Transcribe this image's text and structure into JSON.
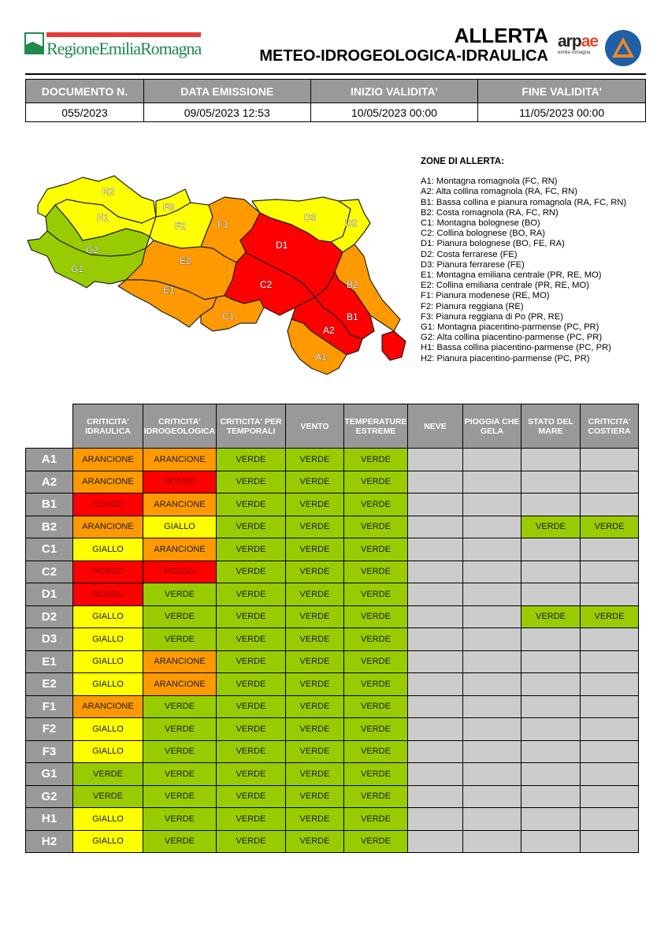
{
  "header": {
    "org_logo_text": "RegioneEmiliaRomagna",
    "title_line1": "ALLERTA",
    "title_line2": "METEO-IDROGEOLOGICA-IDRAULICA",
    "arpae_logo": {
      "word_a": "arp",
      "word_b": "ae",
      "subtitle": "emilia-romagna"
    },
    "civil_protection_logo": "protezione-civile-emblem"
  },
  "document_info": {
    "headers": [
      "DOCUMENTO N.",
      "DATA EMISSIONE",
      "INIZIO VALIDITA'",
      "FINE VALIDITA'"
    ],
    "values": [
      "055/2023",
      "09/05/2023 12:53",
      "10/05/2023 00:00",
      "11/05/2023 00:00"
    ]
  },
  "map": {
    "zones": [
      {
        "id": "H2",
        "color": "GIALLO"
      },
      {
        "id": "H1",
        "color": "GIALLO"
      },
      {
        "id": "G2",
        "color": "VERDE"
      },
      {
        "id": "G1",
        "color": "VERDE"
      },
      {
        "id": "F3",
        "color": "GIALLO"
      },
      {
        "id": "F2",
        "color": "GIALLO"
      },
      {
        "id": "F1",
        "color": "ARANCIONE"
      },
      {
        "id": "E2",
        "color": "ARANCIONE"
      },
      {
        "id": "E1",
        "color": "ARANCIONE"
      },
      {
        "id": "D3",
        "color": "GIALLO"
      },
      {
        "id": "D2",
        "color": "GIALLO"
      },
      {
        "id": "D1",
        "color": "ROSSO"
      },
      {
        "id": "C2",
        "color": "ROSSO"
      },
      {
        "id": "C1",
        "color": "ARANCIONE"
      },
      {
        "id": "B2",
        "color": "ARANCIONE"
      },
      {
        "id": "B1",
        "color": "ROSSO"
      },
      {
        "id": "A2",
        "color": "ROSSO"
      },
      {
        "id": "A1",
        "color": "ARANCIONE"
      }
    ]
  },
  "legend": {
    "title": "ZONE DI ALLERTA:",
    "items": [
      "A1: Montagna romagnola (FC, RN)",
      "A2: Alta collina romagnola (RA, FC, RN)",
      "B1: Bassa collina e pianura romagnola (RA, FC, RN)",
      "B2: Costa romagnola (RA, FC, RN)",
      "C1: Montagna bolognese (BO)",
      "C2: Collina bolognese (BO, RA)",
      "D1: Pianura bolognese (BO, FE, RA)",
      "D2: Costa ferrarese (FE)",
      "D3: Pianura ferrarese (FE)",
      "E1: Montagna emiliana centrale (PR, RE, MO)",
      "E2: Collina emiliana centrale (PR, RE, MO)",
      "F1: Pianura modenese (RE, MO)",
      "F2: Pianura reggiana (RE)",
      "F3: Pianura reggiana di Po (PR, RE)",
      "G1: Montagna piacentino-parmense (PC, PR)",
      "G2: Alta collina piacentino-parmense (PC, PR)",
      "H1: Bassa collina piacentino-parmense (PC, PR)",
      "H2: Pianura piacentino-parmense (PC, PR)"
    ]
  },
  "colors": {
    "VERDE": "#99cc00",
    "GIALLO": "#ffff00",
    "ARANCIONE": "#ff9900",
    "ROSSO": "#ff0000",
    "empty": "#cccccc",
    "header_gray": "#999999"
  },
  "alert_table": {
    "columns": [
      "CRITICITA' IDRAULICA",
      "CRITICITA' IDROGEOLOGICA",
      "CRITICITA' PER TEMPORALI",
      "VENTO",
      "TEMPERATURE ESTREME",
      "NEVE",
      "PIOGGIA CHE GELA",
      "STATO DEL MARE",
      "CRITICITA' COSTIERA"
    ],
    "rows": [
      {
        "zone": "A1",
        "values": [
          "ARANCIONE",
          "ARANCIONE",
          "VERDE",
          "VERDE",
          "VERDE",
          "",
          "",
          "",
          ""
        ]
      },
      {
        "zone": "A2",
        "values": [
          "ARANCIONE",
          "ROSSO",
          "VERDE",
          "VERDE",
          "VERDE",
          "",
          "",
          "",
          ""
        ]
      },
      {
        "zone": "B1",
        "values": [
          "ROSSO",
          "ARANCIONE",
          "VERDE",
          "VERDE",
          "VERDE",
          "",
          "",
          "",
          ""
        ]
      },
      {
        "zone": "B2",
        "values": [
          "ARANCIONE",
          "GIALLO",
          "VERDE",
          "VERDE",
          "VERDE",
          "",
          "",
          "VERDE",
          "VERDE"
        ]
      },
      {
        "zone": "C1",
        "values": [
          "GIALLO",
          "ARANCIONE",
          "VERDE",
          "VERDE",
          "VERDE",
          "",
          "",
          "",
          ""
        ]
      },
      {
        "zone": "C2",
        "values": [
          "ROSSO",
          "ROSSO",
          "VERDE",
          "VERDE",
          "VERDE",
          "",
          "",
          "",
          ""
        ]
      },
      {
        "zone": "D1",
        "values": [
          "ROSSO",
          "VERDE",
          "VERDE",
          "VERDE",
          "VERDE",
          "",
          "",
          "",
          ""
        ]
      },
      {
        "zone": "D2",
        "values": [
          "GIALLO",
          "VERDE",
          "VERDE",
          "VERDE",
          "VERDE",
          "",
          "",
          "VERDE",
          "VERDE"
        ]
      },
      {
        "zone": "D3",
        "values": [
          "GIALLO",
          "VERDE",
          "VERDE",
          "VERDE",
          "VERDE",
          "",
          "",
          "",
          ""
        ]
      },
      {
        "zone": "E1",
        "values": [
          "GIALLO",
          "ARANCIONE",
          "VERDE",
          "VERDE",
          "VERDE",
          "",
          "",
          "",
          ""
        ]
      },
      {
        "zone": "E2",
        "values": [
          "GIALLO",
          "ARANCIONE",
          "VERDE",
          "VERDE",
          "VERDE",
          "",
          "",
          "",
          ""
        ]
      },
      {
        "zone": "F1",
        "values": [
          "ARANCIONE",
          "VERDE",
          "VERDE",
          "VERDE",
          "VERDE",
          "",
          "",
          "",
          ""
        ]
      },
      {
        "zone": "F2",
        "values": [
          "GIALLO",
          "VERDE",
          "VERDE",
          "VERDE",
          "VERDE",
          "",
          "",
          "",
          ""
        ]
      },
      {
        "zone": "F3",
        "values": [
          "GIALLO",
          "VERDE",
          "VERDE",
          "VERDE",
          "VERDE",
          "",
          "",
          "",
          ""
        ]
      },
      {
        "zone": "G1",
        "values": [
          "VERDE",
          "VERDE",
          "VERDE",
          "VERDE",
          "VERDE",
          "",
          "",
          "",
          ""
        ]
      },
      {
        "zone": "G2",
        "values": [
          "VERDE",
          "VERDE",
          "VERDE",
          "VERDE",
          "VERDE",
          "",
          "",
          "",
          ""
        ]
      },
      {
        "zone": "H1",
        "values": [
          "GIALLO",
          "VERDE",
          "VERDE",
          "VERDE",
          "VERDE",
          "",
          "",
          "",
          ""
        ]
      },
      {
        "zone": "H2",
        "values": [
          "GIALLO",
          "VERDE",
          "VERDE",
          "VERDE",
          "VERDE",
          "",
          "",
          "",
          ""
        ]
      }
    ]
  }
}
